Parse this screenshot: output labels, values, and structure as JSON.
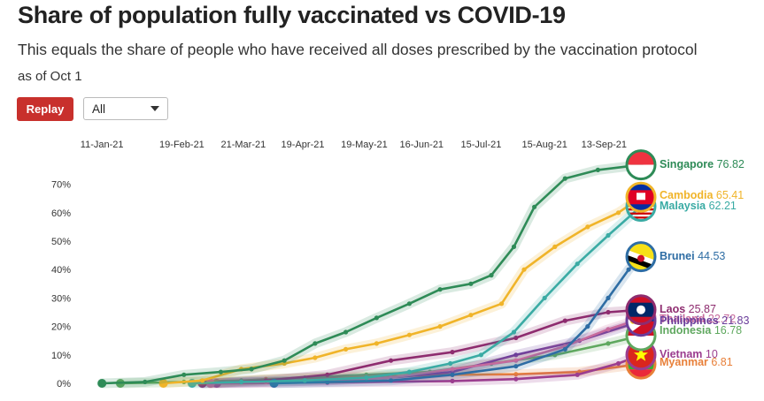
{
  "header": {
    "title": "Share of population fully vaccinated vs COVID-19",
    "subtitle": "This equals the share of people who have received all doses prescribed by the vaccination protocol",
    "as_of": "as of Oct 1"
  },
  "controls": {
    "replay_label": "Replay",
    "filter_value": "All"
  },
  "chart_data": {
    "type": "line",
    "x_tick_labels": [
      "11-Jan-21",
      "19-Feb-21",
      "21-Mar-21",
      "19-Apr-21",
      "19-May-21",
      "16-Jun-21",
      "15-Jul-21",
      "15-Aug-21",
      "13-Sep-21"
    ],
    "y_tick_labels": [
      "0%",
      "10%",
      "20%",
      "30%",
      "40%",
      "50%",
      "60%",
      "70%"
    ],
    "xlim": [
      "2021-01-01",
      "2021-10-01"
    ],
    "ylim": [
      0,
      77
    ],
    "grid": false,
    "series": [
      {
        "name": "Singapore",
        "value_label": "76.82",
        "color": "#2e8b57",
        "flag_icon": "singapore-flag-icon",
        "points": [
          [
            "2021-01-11",
            0
          ],
          [
            "2021-02-01",
            0.5
          ],
          [
            "2021-02-20",
            3
          ],
          [
            "2021-03-10",
            4
          ],
          [
            "2021-03-25",
            5
          ],
          [
            "2021-04-10",
            8
          ],
          [
            "2021-04-25",
            14
          ],
          [
            "2021-05-10",
            18
          ],
          [
            "2021-05-25",
            23
          ],
          [
            "2021-06-10",
            28
          ],
          [
            "2021-06-25",
            33
          ],
          [
            "2021-07-10",
            35
          ],
          [
            "2021-07-20",
            38
          ],
          [
            "2021-07-31",
            48
          ],
          [
            "2021-08-10",
            62
          ],
          [
            "2021-08-25",
            72
          ],
          [
            "2021-09-10",
            75
          ],
          [
            "2021-10-01",
            76.82
          ]
        ]
      },
      {
        "name": "Cambodia",
        "value_label": "65.41",
        "color": "#f0b429",
        "flag_icon": "cambodia-flag-icon",
        "points": [
          [
            "2021-02-10",
            0
          ],
          [
            "2021-03-01",
            1
          ],
          [
            "2021-03-20",
            5
          ],
          [
            "2021-04-10",
            7
          ],
          [
            "2021-04-25",
            9
          ],
          [
            "2021-05-10",
            12
          ],
          [
            "2021-05-25",
            14
          ],
          [
            "2021-06-10",
            17
          ],
          [
            "2021-06-25",
            20
          ],
          [
            "2021-07-10",
            24
          ],
          [
            "2021-07-25",
            28
          ],
          [
            "2021-08-05",
            40
          ],
          [
            "2021-08-20",
            48
          ],
          [
            "2021-09-05",
            55
          ],
          [
            "2021-09-20",
            60
          ],
          [
            "2021-10-01",
            65.41
          ]
        ]
      },
      {
        "name": "Malaysia",
        "value_label": "62.21",
        "color": "#3aaba4",
        "flag_icon": "malaysia-flag-icon",
        "points": [
          [
            "2021-02-24",
            0
          ],
          [
            "2021-03-20",
            0.5
          ],
          [
            "2021-04-20",
            1
          ],
          [
            "2021-05-20",
            2
          ],
          [
            "2021-06-10",
            4
          ],
          [
            "2021-06-30",
            7
          ],
          [
            "2021-07-15",
            10
          ],
          [
            "2021-07-31",
            18
          ],
          [
            "2021-08-15",
            30
          ],
          [
            "2021-08-31",
            42
          ],
          [
            "2021-09-15",
            52
          ],
          [
            "2021-10-01",
            62.21
          ]
        ]
      },
      {
        "name": "Brunei",
        "value_label": "44.53",
        "color": "#2e6da4",
        "flag_icon": "brunei-flag-icon",
        "points": [
          [
            "2021-04-05",
            0
          ],
          [
            "2021-05-01",
            0.5
          ],
          [
            "2021-06-01",
            1
          ],
          [
            "2021-07-01",
            3
          ],
          [
            "2021-08-01",
            6
          ],
          [
            "2021-08-25",
            12
          ],
          [
            "2021-09-05",
            20
          ],
          [
            "2021-09-15",
            30
          ],
          [
            "2021-09-25",
            40
          ],
          [
            "2021-10-01",
            44.53
          ]
        ]
      },
      {
        "name": "Laos",
        "value_label": "25.87",
        "color": "#8e2c6f",
        "flag_icon": "laos-flag-icon",
        "points": [
          [
            "2021-03-01",
            0
          ],
          [
            "2021-04-01",
            1
          ],
          [
            "2021-05-01",
            3
          ],
          [
            "2021-06-01",
            8
          ],
          [
            "2021-07-01",
            11
          ],
          [
            "2021-08-01",
            16
          ],
          [
            "2021-08-25",
            22
          ],
          [
            "2021-09-15",
            25
          ],
          [
            "2021-10-01",
            25.87
          ]
        ]
      },
      {
        "name": "Thailand",
        "value_label": "22.72",
        "color": "#c76b9d",
        "flag_icon": "thailand-flag-icon",
        "points": [
          [
            "2021-03-05",
            0
          ],
          [
            "2021-04-01",
            0.5
          ],
          [
            "2021-05-01",
            1
          ],
          [
            "2021-06-01",
            2
          ],
          [
            "2021-07-01",
            5
          ],
          [
            "2021-08-01",
            8
          ],
          [
            "2021-08-25",
            13
          ],
          [
            "2021-09-15",
            19
          ],
          [
            "2021-10-01",
            22.72
          ]
        ]
      },
      {
        "name": "Philippines",
        "value_label": "21.83",
        "color": "#6a3d9a",
        "flag_icon": "philippines-flag-icon",
        "points": [
          [
            "2021-03-01",
            0
          ],
          [
            "2021-04-01",
            0.5
          ],
          [
            "2021-05-01",
            1
          ],
          [
            "2021-06-01",
            2
          ],
          [
            "2021-07-01",
            4
          ],
          [
            "2021-08-01",
            10
          ],
          [
            "2021-09-01",
            15
          ],
          [
            "2021-10-01",
            21.83
          ]
        ]
      },
      {
        "name": "Indonesia",
        "value_label": "16.78",
        "color": "#5fa85f",
        "flag_icon": "indonesia-flag-icon",
        "points": [
          [
            "2021-01-20",
            0
          ],
          [
            "2021-02-20",
            0.5
          ],
          [
            "2021-03-20",
            1
          ],
          [
            "2021-04-20",
            2
          ],
          [
            "2021-05-20",
            3
          ],
          [
            "2021-06-20",
            4
          ],
          [
            "2021-07-20",
            7
          ],
          [
            "2021-08-20",
            10
          ],
          [
            "2021-09-15",
            14
          ],
          [
            "2021-10-01",
            16.78
          ]
        ]
      },
      {
        "name": "Vietnam",
        "value_label": "10",
        "color": "#9b3d8f",
        "flag_icon": "vietnam-flag-icon",
        "points": [
          [
            "2021-03-08",
            0
          ],
          [
            "2021-05-01",
            0.3
          ],
          [
            "2021-07-01",
            0.8
          ],
          [
            "2021-08-01",
            1.5
          ],
          [
            "2021-08-31",
            3
          ],
          [
            "2021-09-20",
            7
          ],
          [
            "2021-10-01",
            10
          ]
        ]
      },
      {
        "name": "Myanmar",
        "value_label": "6.81",
        "color": "#e8803a",
        "flag_icon": "myanmar-flag-icon",
        "points": [
          [
            "2021-03-05",
            0
          ],
          [
            "2021-04-01",
            1.5
          ],
          [
            "2021-05-01",
            2
          ],
          [
            "2021-06-01",
            2.5
          ],
          [
            "2021-07-01",
            3
          ],
          [
            "2021-08-01",
            3.2
          ],
          [
            "2021-09-01",
            4
          ],
          [
            "2021-10-01",
            6.81
          ]
        ]
      }
    ]
  }
}
